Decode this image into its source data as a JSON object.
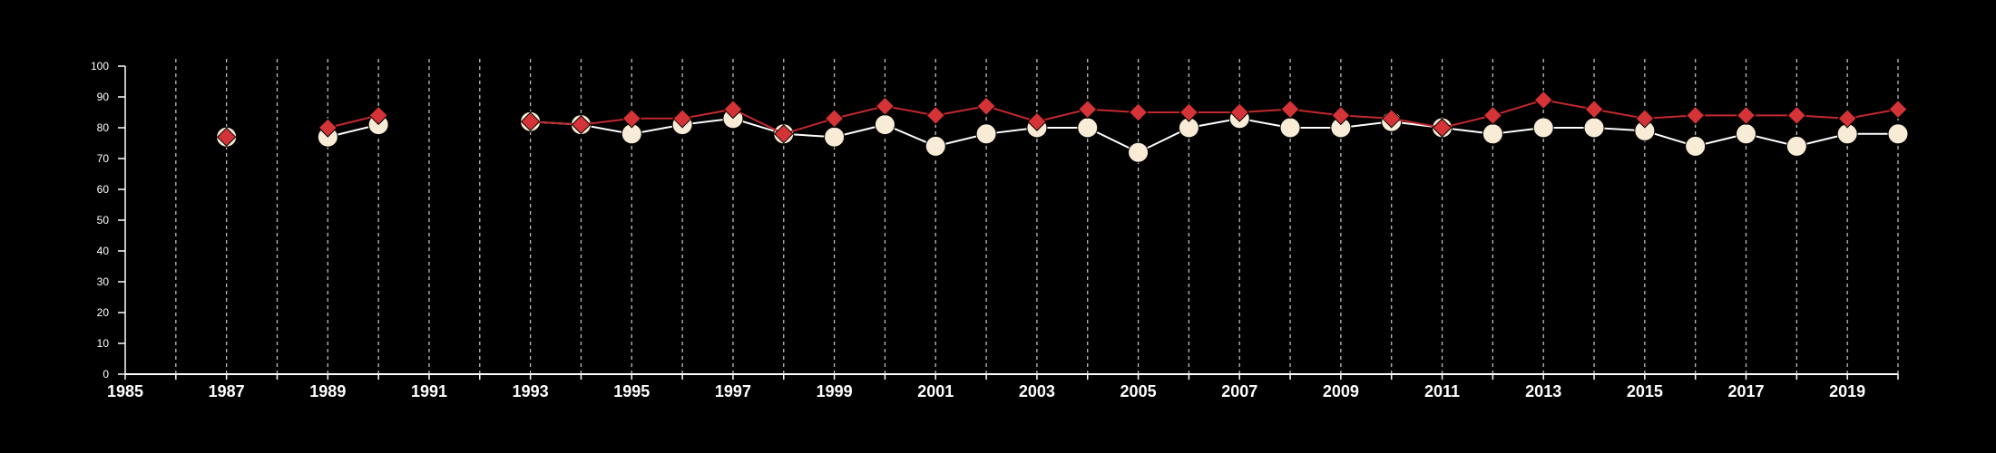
{
  "chart_data": {
    "type": "line",
    "title": "",
    "xlabel": "",
    "ylabel": "",
    "xlim": [
      1985,
      2020
    ],
    "ylim": [
      0,
      100
    ],
    "x_ticks": [
      "1985",
      "1987",
      "1989",
      "1991",
      "1993",
      "1995",
      "1997",
      "1999",
      "2001",
      "2003",
      "2005",
      "2007",
      "2009",
      "2011",
      "2013",
      "2015",
      "2017",
      "2019"
    ],
    "y_ticks": [
      "0",
      "10",
      "20",
      "30",
      "40",
      "50",
      "60",
      "70",
      "80",
      "90",
      "100"
    ],
    "vertical_grid": "dashed, every year",
    "legend": "none",
    "x": [
      1987,
      1989,
      1990,
      1993,
      1994,
      1995,
      1996,
      1997,
      1998,
      1999,
      2000,
      2001,
      2002,
      2003,
      2004,
      2005,
      2006,
      2007,
      2008,
      2009,
      2010,
      2011,
      2012,
      2013,
      2014,
      2015,
      2016,
      2017,
      2018,
      2019,
      2020
    ],
    "series": [
      {
        "marker": "circle",
        "color": "#f8ecd6",
        "line_color": "#ffffff",
        "values": [
          77,
          77,
          81,
          82,
          81,
          78,
          81,
          83,
          78,
          77,
          81,
          74,
          78,
          80,
          80,
          72,
          80,
          83,
          80,
          80,
          82,
          80,
          78,
          80,
          80,
          79,
          74,
          78,
          74,
          78,
          78
        ]
      },
      {
        "marker": "diamond",
        "color": "#d43337",
        "line_color": "#c2292e",
        "values": [
          77,
          80,
          84,
          82,
          81,
          83,
          83,
          86,
          78,
          83,
          87,
          84,
          87,
          82,
          86,
          85,
          85,
          85,
          86,
          84,
          83,
          80,
          84,
          89,
          86,
          83,
          84,
          84,
          84,
          83,
          86
        ]
      }
    ]
  }
}
